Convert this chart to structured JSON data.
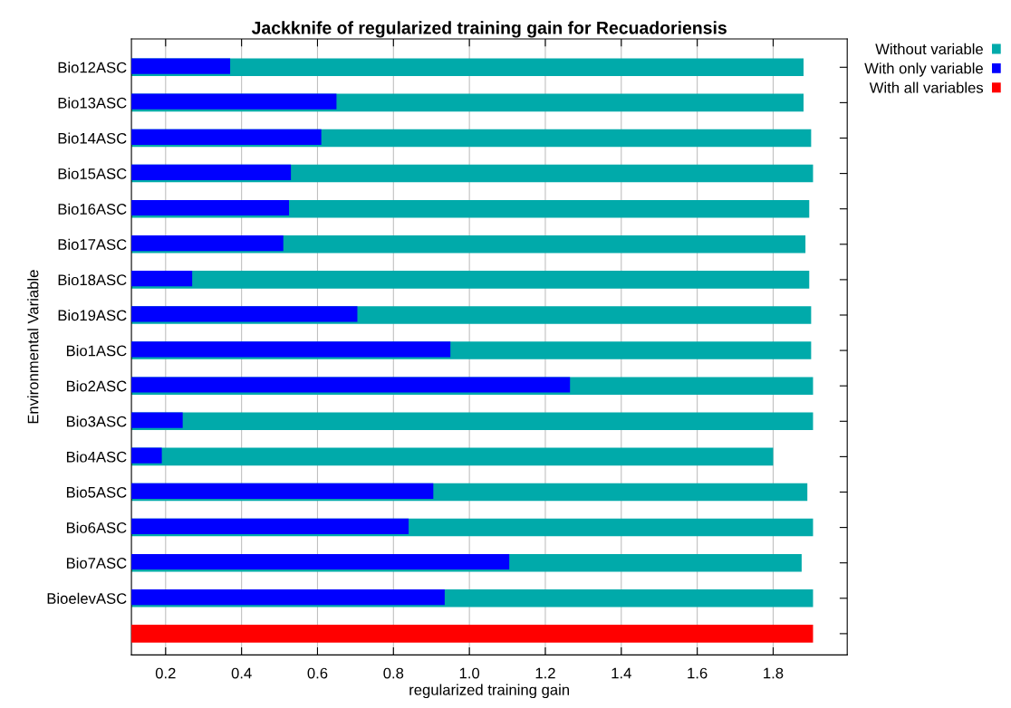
{
  "chart_data": {
    "type": "bar",
    "orientation": "horizontal",
    "title": "Jackknife of regularized training gain for Recuadoriensis",
    "xlabel": "regularized training gain",
    "ylabel": "Environmental Variable",
    "categories": [
      "Bio12ASC",
      "Bio13ASC",
      "Bio14ASC",
      "Bio15ASC",
      "Bio16ASC",
      "Bio17ASC",
      "Bio18ASC",
      "Bio19ASC",
      "Bio1ASC",
      "Bio2ASC",
      "Bio3ASC",
      "Bio4ASC",
      "Bio5ASC",
      "Bio6ASC",
      "Bio7ASC",
      "BioelevASC",
      null
    ],
    "series": [
      {
        "name": "Without variable",
        "color": "#00aaaa",
        "values": [
          1.88,
          1.88,
          1.9,
          1.905,
          1.895,
          1.885,
          1.895,
          1.9,
          1.9,
          1.905,
          1.905,
          1.8,
          1.89,
          1.905,
          1.875,
          1.905,
          null
        ]
      },
      {
        "name": "With only variable",
        "color": "#0000ff",
        "values": [
          0.37,
          0.65,
          0.61,
          0.53,
          0.525,
          0.51,
          0.27,
          0.705,
          0.95,
          1.265,
          0.245,
          0.19,
          0.905,
          0.84,
          1.105,
          0.935,
          null
        ]
      },
      {
        "name": "With all variables",
        "color": "#ff0000",
        "values": [
          null,
          null,
          null,
          null,
          null,
          null,
          null,
          null,
          null,
          null,
          null,
          null,
          null,
          null,
          null,
          null,
          1.905
        ]
      }
    ],
    "xlim": [
      0.11,
      1.995
    ],
    "xticks": [
      {
        "value": 0.2,
        "label": "0.2"
      },
      {
        "value": 0.4,
        "label": "0.4"
      },
      {
        "value": 0.6,
        "label": "0.6"
      },
      {
        "value": 0.8,
        "label": "0.8"
      },
      {
        "value": 1.0,
        "label": "1.0"
      },
      {
        "value": 1.2,
        "label": "1.2"
      },
      {
        "value": 1.4,
        "label": "1.4"
      },
      {
        "value": 1.6,
        "label": "1.6"
      },
      {
        "value": 1.8,
        "label": "1.8"
      }
    ],
    "grid": true,
    "legend": "top right"
  }
}
